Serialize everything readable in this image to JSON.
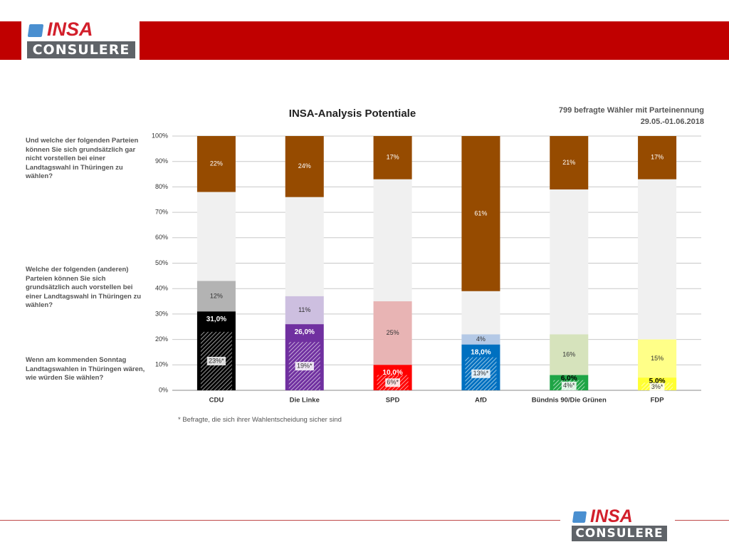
{
  "header": {
    "logo_word": "INSA",
    "logo_sub": "CONSULERE",
    "brand_color": "#c00000"
  },
  "chart_title": "INSA-Analysis Potentiale",
  "sample": {
    "line1": "799 befragte Wähler mit Parteinennung",
    "line2": "29.05.-01.06.2018"
  },
  "questions": [
    "Und welche der folgenden Parteien können Sie sich grundsätzlich gar nicht vorstellen bei einer Landtagswahl in Thüringen zu wählen?",
    "Welche der folgenden (anderen) Parteien können Sie sich grundsätzlich auch vorstellen bei einer Landtagswahl in Thüringen zu wählen?",
    "Wenn am kommenden Sonntag Landtagswahlen in Thüringen wären, wie würden Sie wählen?"
  ],
  "footnote": "* Befragte, die sich ihrer Wahlentscheidung sicher sind",
  "chart_data": {
    "type": "bar",
    "stacked": true,
    "categories": [
      "CDU",
      "Die Linke",
      "SPD",
      "AfD",
      "Bündnis 90/Die Grünen",
      "FDP"
    ],
    "ylim": [
      0,
      100
    ],
    "yticks": [
      "0%",
      "10%",
      "20%",
      "30%",
      "40%",
      "50%",
      "60%",
      "70%",
      "80%",
      "90%",
      "100%"
    ],
    "grid": true,
    "vote": [
      31.0,
      26.0,
      10.0,
      18.0,
      6.0,
      5.0
    ],
    "vote_labels": [
      "31,0%",
      "26,0%",
      "10,0%",
      "18,0%",
      "6,0%",
      "5,0%"
    ],
    "certain": [
      23,
      19,
      6,
      13,
      4,
      3
    ],
    "certain_labels": [
      "23%*",
      "19%*",
      "6%*",
      "13%*",
      "4%*",
      "3%*"
    ],
    "potential": [
      12,
      11,
      25,
      4,
      16,
      15
    ],
    "potential_labels": [
      "12%",
      "11%",
      "25%",
      "4%",
      "16%",
      "15%"
    ],
    "rejection": [
      22,
      24,
      17,
      61,
      21,
      17
    ],
    "rejection_labels": [
      "22%",
      "24%",
      "17%",
      "61%",
      "21%",
      "17%"
    ],
    "party_colors": [
      "#000000",
      "#7030a0",
      "#ff0000",
      "#0070c0",
      "#1fa546",
      "#ffff33"
    ],
    "potential_colors": [
      "#b3b3b3",
      "#cdbfe0",
      "#e8b4b4",
      "#b4c9e6",
      "#d6e3bc",
      "#ffff88"
    ],
    "rejection_color": "#964b00",
    "remainder_color": "#f0f0f0"
  }
}
